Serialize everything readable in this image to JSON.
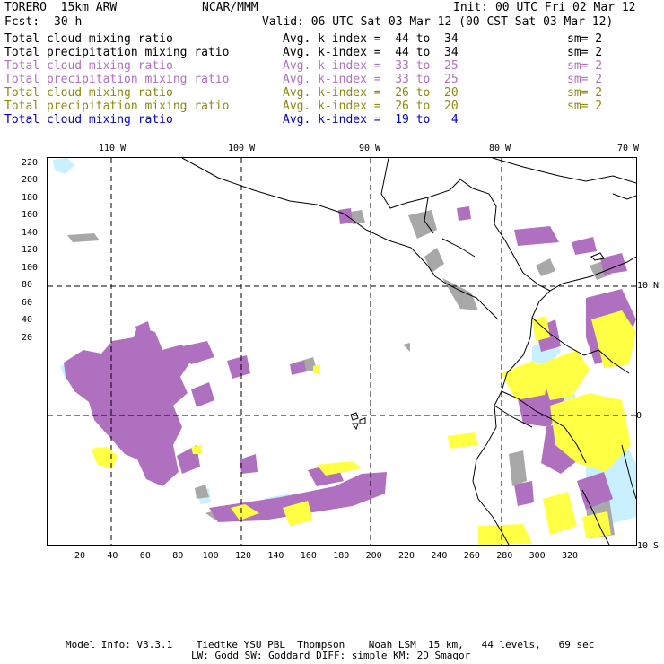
{
  "header": {
    "model": "TORERO  15km ARW",
    "center": "NCAR/MMM",
    "init": "Init: 00 UTC Fri 02 Mar 12",
    "fcst_label": "Fcst:",
    "fcst_value": "30 h",
    "valid": "Valid: 06 UTC Sat 03 Mar 12 (00 CST Sat 03 Mar 12)"
  },
  "legend": [
    {
      "field": "Total cloud mixing ratio",
      "index": "Avg. k-index =  44 to  34",
      "sm": "sm= 2",
      "color": "#000000"
    },
    {
      "field": "Total precipitation mixing ratio",
      "index": "Avg. k-index =  44 to  34",
      "sm": "sm= 2",
      "color": "#000000"
    },
    {
      "field": "Total cloud mixing ratio",
      "index": "Avg. k-index =  33 to  25",
      "sm": "sm= 2",
      "color": "#b070c0"
    },
    {
      "field": "Total precipitation mixing ratio",
      "index": "Avg. k-index =  33 to  25",
      "sm": "sm= 2",
      "color": "#b070c0"
    },
    {
      "field": "Total cloud mixing ratio",
      "index": "Avg. k-index =  26 to  20",
      "sm": "sm= 2",
      "color": "#8a8a10"
    },
    {
      "field": "Total precipitation mixing ratio",
      "index": "Avg. k-index =  26 to  20",
      "sm": "sm= 2",
      "color": "#8a8a10"
    },
    {
      "field": "Total cloud mixing ratio",
      "index": "Avg. k-index =  19 to   4",
      "sm": "",
      "color": "#0000cc"
    }
  ],
  "axes": {
    "lon_labels": [
      "110 W",
      "100 W",
      "90 W",
      "80 W",
      "70 W"
    ],
    "lat_labels": [
      "10 N",
      "0",
      "10 S"
    ],
    "x_ticks": [
      "20",
      "40",
      "60",
      "80",
      "100",
      "120",
      "140",
      "160",
      "180",
      "200",
      "220",
      "240",
      "260",
      "280",
      "300",
      "320"
    ],
    "y_ticks": [
      "220",
      "200",
      "180",
      "160",
      "140",
      "120",
      "100",
      "80",
      "60",
      "40",
      "20"
    ]
  },
  "colors": {
    "grey": "#a8a8a8",
    "purple": "#b070c0",
    "yellow": "#ffff44",
    "lightblue": "#c8f0ff"
  },
  "footer": {
    "line1": "Model Info: V3.3.1    Tiedtke YSU PBL  Thompson    Noah LSM  15 km,   44 levels,   69 sec",
    "line2": "LW: Godd SW: Goddard DIFF: simple KM: 2D Smagor"
  }
}
